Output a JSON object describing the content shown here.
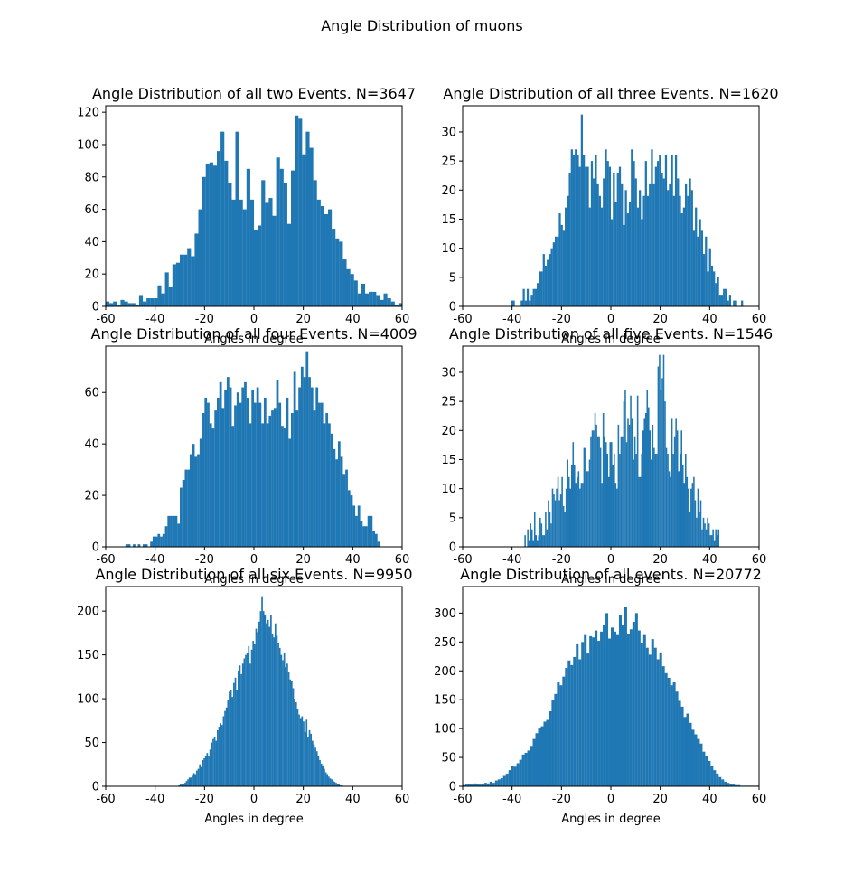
{
  "figure": {
    "title": "Angle Distribution of muons"
  },
  "colors": {
    "bar": "#1f77b4"
  },
  "chart_data": [
    {
      "type": "bar",
      "title": "Angle Distribution of all two Events. N=3647",
      "xlabel": "Angles in degree",
      "xlim": [
        -60,
        60
      ],
      "ylim": [
        0,
        124
      ],
      "xticks": [
        "-60",
        "-40",
        "-20",
        "0",
        "20",
        "40",
        "60"
      ],
      "yticks": [
        0,
        20,
        40,
        60,
        80,
        100,
        120
      ],
      "bin_range": [
        -60,
        60
      ],
      "values": [
        3,
        2,
        3,
        1,
        4,
        3,
        2,
        2,
        1,
        7,
        3,
        5,
        5,
        5,
        13,
        8,
        21,
        12,
        26,
        27,
        32,
        32,
        36,
        31,
        45,
        60,
        80,
        88,
        89,
        87,
        96,
        108,
        90,
        76,
        66,
        108,
        66,
        60,
        85,
        66,
        47,
        50,
        78,
        64,
        67,
        56,
        92,
        85,
        76,
        51,
        84,
        118,
        116,
        94,
        108,
        98,
        78,
        66,
        62,
        57,
        60,
        48,
        42,
        40,
        29,
        23,
        20,
        16,
        8,
        14,
        8,
        9,
        9,
        7,
        4,
        8,
        5,
        3,
        1,
        2
      ]
    },
    {
      "type": "bar",
      "title": "Angle Distribution of all three Events. N=1620",
      "xlabel": "Angles in degree",
      "xlim": [
        -60,
        60
      ],
      "ylim": [
        0,
        34.5
      ],
      "xticks": [
        "-60",
        "-40",
        "-20",
        "0",
        "20",
        "40",
        "60"
      ],
      "yticks": [
        0,
        5,
        10,
        15,
        20,
        25,
        30
      ],
      "bin_range": [
        -60,
        60
      ],
      "values": [
        0,
        0,
        0,
        0,
        0,
        0,
        0,
        0,
        0,
        0,
        0,
        0,
        0,
        0,
        0,
        0,
        0,
        0,
        0,
        0,
        0,
        0,
        0,
        0,
        1,
        1,
        0,
        0,
        0,
        1,
        3,
        1,
        3,
        1,
        2,
        3,
        3,
        4,
        6,
        6,
        9,
        7,
        8,
        9,
        10,
        11,
        12,
        12,
        16,
        14,
        13,
        17,
        19,
        23,
        27,
        26,
        27,
        26,
        24,
        33,
        26,
        24,
        24,
        17,
        25,
        22,
        26,
        21,
        19,
        17,
        22,
        27,
        25,
        24,
        15,
        23,
        18,
        23,
        24,
        21,
        14,
        20,
        16,
        18,
        27,
        25,
        22,
        17,
        20,
        15,
        19,
        25,
        19,
        21,
        27,
        21,
        24,
        25,
        26,
        23,
        22,
        26,
        20,
        21,
        26,
        19,
        26,
        22,
        19,
        16,
        17,
        21,
        19,
        22,
        20,
        13,
        17,
        12,
        15,
        13,
        9,
        12,
        6,
        10,
        7,
        6,
        4,
        5,
        2,
        2,
        3,
        3,
        1,
        2,
        0,
        1,
        1,
        0,
        0,
        1,
        0,
        0,
        0,
        0,
        0,
        0,
        0,
        0
      ]
    },
    {
      "type": "bar",
      "title": "Angle Distribution of all four Events. N=4009",
      "xlabel": "Angles in degree",
      "xlim": [
        -60,
        60
      ],
      "ylim": [
        0,
        78
      ],
      "xticks": [
        "-60",
        "-40",
        "-20",
        "0",
        "20",
        "40",
        "60"
      ],
      "yticks": [
        0,
        20,
        40,
        60
      ],
      "bin_range": [
        -60,
        60
      ],
      "values": [
        0,
        0,
        0,
        0,
        0,
        0,
        0,
        0,
        1,
        1,
        0,
        1,
        0,
        1,
        0,
        1,
        1,
        0,
        2,
        4,
        4,
        5,
        4,
        5,
        8,
        12,
        12,
        12,
        12,
        9,
        23,
        26,
        30,
        30,
        36,
        40,
        35,
        36,
        42,
        52,
        58,
        56,
        48,
        46,
        53,
        58,
        64,
        54,
        61,
        66,
        62,
        47,
        55,
        60,
        56,
        62,
        64,
        58,
        48,
        61,
        56,
        62,
        56,
        48,
        58,
        48,
        51,
        53,
        54,
        65,
        56,
        47,
        46,
        58,
        42,
        52,
        68,
        53,
        62,
        70,
        66,
        76,
        66,
        62,
        53,
        62,
        56,
        56,
        48,
        52,
        48,
        44,
        38,
        34,
        41,
        35,
        28,
        30,
        22,
        20,
        16,
        12,
        16,
        10,
        8,
        8,
        12,
        12,
        6,
        5,
        2,
        0,
        0,
        0,
        0,
        0,
        0,
        0,
        0,
        0
      ]
    },
    {
      "type": "bar",
      "title": "Angle Distribution of all five Events. N=1546",
      "xlabel": "Angles in degree",
      "xlim": [
        -60,
        60
      ],
      "ylim": [
        0,
        34.5
      ],
      "xticks": [
        "-60",
        "-40",
        "-20",
        "0",
        "20",
        "40",
        "60"
      ],
      "yticks": [
        0,
        5,
        10,
        15,
        20,
        25,
        30
      ],
      "bin_range": [
        -60,
        60
      ],
      "values": [
        0,
        0,
        0,
        0,
        0,
        0,
        0,
        0,
        0,
        0,
        0,
        0,
        0,
        0,
        0,
        0,
        0,
        0,
        0,
        0,
        0,
        0,
        0,
        0,
        0,
        0,
        0,
        0,
        0,
        0,
        0,
        0,
        0,
        0,
        0,
        0,
        0,
        0,
        0,
        0,
        0,
        0,
        0,
        0,
        0,
        2,
        0,
        3,
        1,
        4,
        3,
        1,
        6,
        2,
        1,
        2,
        5,
        4,
        2,
        2,
        6,
        3,
        8,
        6,
        4,
        10,
        9,
        8,
        10,
        12,
        8,
        9,
        12,
        7,
        6,
        10,
        15,
        12,
        10,
        14,
        18,
        14,
        11,
        12,
        13,
        10,
        11,
        11,
        17,
        17,
        13,
        13,
        15,
        19,
        20,
        20,
        23,
        21,
        19,
        19,
        17,
        11,
        23,
        19,
        18,
        16,
        12,
        18,
        18,
        14,
        16,
        11,
        10,
        21,
        16,
        19,
        19,
        25,
        27,
        18,
        22,
        21,
        26,
        22,
        15,
        19,
        16,
        26,
        12,
        12,
        16,
        20,
        22,
        23,
        27,
        24,
        20,
        15,
        21,
        17,
        16,
        16,
        31,
        33,
        27,
        29,
        33,
        25,
        17,
        16,
        13,
        12,
        22,
        16,
        19,
        22,
        20,
        13,
        16,
        20,
        14,
        11,
        16,
        12,
        10,
        6,
        10,
        11,
        12,
        8,
        5,
        10,
        6,
        8,
        3,
        5,
        4,
        3,
        5,
        4,
        2,
        2,
        3,
        1,
        3,
        2,
        3,
        0,
        0,
        0,
        0,
        0,
        0,
        0,
        0,
        0,
        0,
        0,
        0,
        0,
        0,
        0,
        0,
        0,
        0,
        0,
        0,
        0,
        0,
        0,
        0,
        0,
        0,
        0,
        0,
        0
      ]
    },
    {
      "type": "bar",
      "title": "Angle Distribution of all six Events. N=9950",
      "xlabel": "Angles in degree",
      "xlim": [
        -60,
        60
      ],
      "ylim": [
        0,
        228
      ],
      "xticks": [
        "-60",
        "-40",
        "-20",
        "0",
        "20",
        "40",
        "60"
      ],
      "yticks": [
        0,
        50,
        100,
        150,
        200
      ],
      "bin_range": [
        -60,
        60
      ],
      "values": [
        0,
        0,
        0,
        0,
        0,
        0,
        0,
        0,
        0,
        0,
        0,
        0,
        0,
        0,
        0,
        0,
        0,
        0,
        0,
        0,
        0,
        0,
        0,
        0,
        0,
        0,
        0,
        0,
        0,
        0,
        0,
        0,
        0,
        0,
        0,
        0,
        0,
        0,
        0,
        0,
        0,
        0,
        0,
        0,
        0,
        0,
        0,
        0,
        0,
        1,
        2,
        3,
        3,
        4,
        6,
        8,
        10,
        10,
        12,
        15,
        14,
        18,
        20,
        25,
        22,
        30,
        32,
        35,
        38,
        35,
        42,
        50,
        54,
        56,
        52,
        64,
        68,
        72,
        70,
        80,
        86,
        90,
        98,
        108,
        110,
        102,
        118,
        124,
        110,
        132,
        138,
        128,
        140,
        146,
        150,
        152,
        160,
        140,
        156,
        166,
        162,
        180,
        176,
        188,
        200,
        216,
        200,
        196,
        186,
        190,
        182,
        196,
        174,
        170,
        186,
        172,
        164,
        158,
        150,
        144,
        152,
        136,
        140,
        130,
        122,
        120,
        112,
        100,
        96,
        88,
        82,
        78,
        80,
        74,
        62,
        76,
        56,
        64,
        60,
        52,
        48,
        44,
        40,
        34,
        30,
        26,
        24,
        20,
        16,
        14,
        11,
        9,
        8,
        6,
        5,
        4,
        3,
        2,
        1,
        1,
        0,
        0,
        0,
        0,
        0,
        0,
        0,
        0,
        0,
        0,
        0,
        0,
        0,
        0,
        0,
        0,
        0,
        0,
        0,
        0,
        0,
        0,
        0,
        0,
        0,
        0,
        0,
        0,
        0,
        0,
        0,
        0,
        0,
        0,
        0,
        0,
        0,
        0,
        0,
        0
      ]
    },
    {
      "type": "bar",
      "title": "Angle Distribution of all events. N=20772",
      "xlabel": "Angles in degree",
      "xlim": [
        -60,
        60
      ],
      "ylim": [
        0,
        346
      ],
      "xticks": [
        "-60",
        "-40",
        "-20",
        "0",
        "20",
        "40",
        "60"
      ],
      "yticks": [
        0,
        50,
        100,
        150,
        200,
        250,
        300
      ],
      "bin_range": [
        -60,
        60
      ],
      "values": [
        2,
        3,
        4,
        3,
        5,
        4,
        3,
        4,
        6,
        5,
        8,
        6,
        10,
        12,
        14,
        18,
        22,
        28,
        35,
        34,
        40,
        46,
        55,
        58,
        62,
        70,
        82,
        92,
        100,
        104,
        112,
        115,
        130,
        150,
        160,
        180,
        175,
        190,
        205,
        218,
        210,
        224,
        246,
        220,
        250,
        262,
        230,
        260,
        258,
        270,
        252,
        268,
        280,
        300,
        256,
        275,
        268,
        262,
        296,
        280,
        310,
        264,
        272,
        285,
        300,
        270,
        248,
        262,
        240,
        228,
        255,
        240,
        220,
        232,
        208,
        196,
        188,
        175,
        180,
        164,
        148,
        138,
        120,
        126,
        110,
        98,
        90,
        82,
        74,
        60,
        52,
        44,
        36,
        28,
        22,
        16,
        12,
        8,
        6,
        4,
        3,
        2,
        2,
        1,
        1,
        1,
        1,
        1,
        1,
        1
      ]
    }
  ]
}
